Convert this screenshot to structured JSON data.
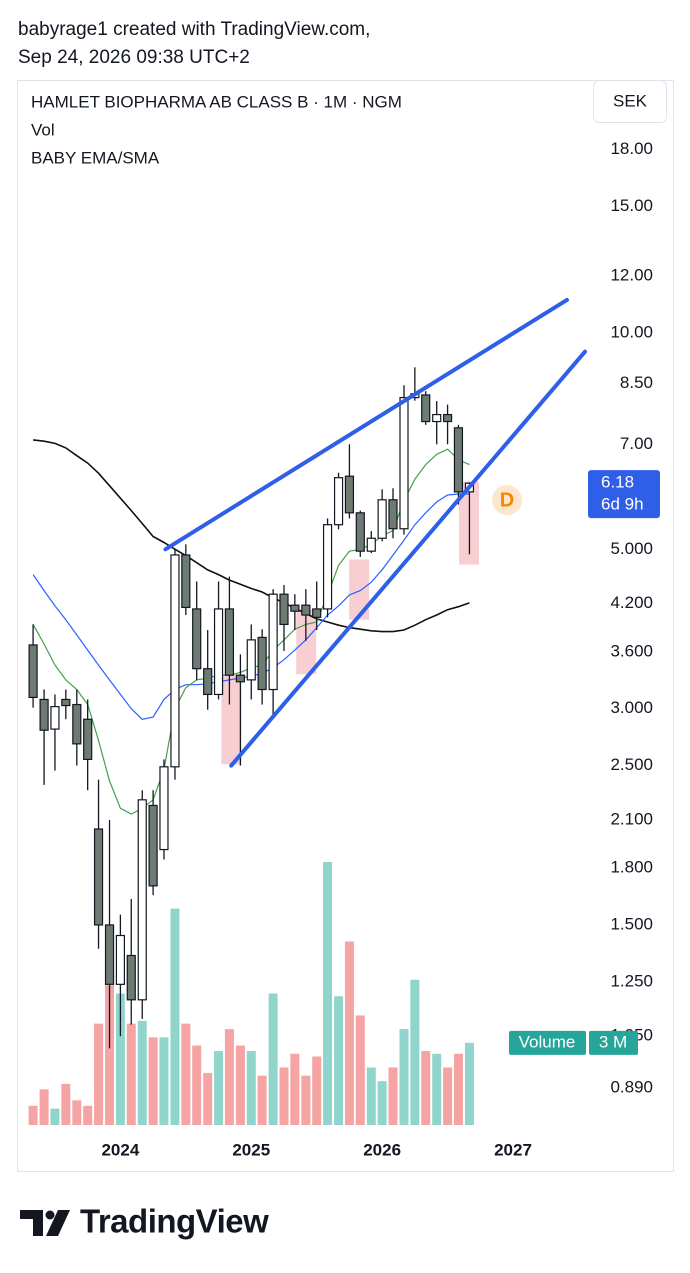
{
  "header": {
    "line1": "babyrage1 created with TradingView.com,",
    "line2": "Sep 24, 2026 09:38 UTC+2"
  },
  "chart_data": {
    "type": "candlestick",
    "title": "HAMLET BIOPHARMA AB CLASS B · 1M · NGM",
    "indicators": [
      "Vol",
      "BABY EMA/SMA"
    ],
    "currency": "SEK",
    "log_scale": true,
    "grid": false,
    "up_color": "#ffffff",
    "down_color": "#6e7b72",
    "x": [
      2023.333,
      2023.417,
      2023.5,
      2023.583,
      2023.667,
      2023.75,
      2023.833,
      2023.917,
      2024,
      2024.083,
      2024.167,
      2024.25,
      2024.333,
      2024.417,
      2024.5,
      2024.583,
      2024.667,
      2024.75,
      2024.833,
      2024.917,
      2025,
      2025.083,
      2025.167,
      2025.25,
      2025.333,
      2025.417,
      2025.5,
      2025.583,
      2025.667,
      2025.75,
      2025.833,
      2025.917,
      2026,
      2026.083,
      2026.167,
      2026.25,
      2026.333,
      2026.417,
      2026.5,
      2026.583,
      2026.667
    ],
    "open": [
      3.68,
      3.09,
      2.81,
      3.09,
      3.04,
      2.9,
      2.04,
      1.5,
      1.24,
      1.36,
      1.18,
      2.2,
      1.91,
      2.49,
      4.91,
      4.13,
      3.41,
      3.14,
      4.13,
      3.34,
      3.29,
      3.77,
      3.19,
      4.33,
      4.18,
      4.18,
      4.13,
      4.13,
      5.41,
      6.32,
      5.62,
      4.97,
      5.18,
      5.86,
      5.34,
      8.13,
      8.2,
      7.53,
      7.7,
      7.38,
      6.01
    ],
    "high": [
      3.93,
      3.19,
      3.14,
      3.19,
      3.19,
      3.09,
      2.39,
      2.1,
      1.55,
      1.63,
      2.31,
      2.31,
      2.55,
      5.0,
      5.08,
      4.51,
      3.86,
      4.51,
      4.58,
      3.57,
      3.93,
      3.87,
      4.4,
      4.46,
      4.33,
      4.4,
      4.51,
      5.52,
      6.39,
      7.0,
      5.66,
      5.3,
      6.06,
      6.08,
      8.46,
      8.96,
      8.3,
      8.04,
      7.95,
      7.45,
      6.2
    ],
    "low": [
      3.01,
      2.35,
      2.46,
      2.9,
      2.5,
      2.31,
      1.39,
      1.01,
      1.05,
      1.09,
      1.11,
      1.65,
      1.85,
      2.39,
      4.05,
      3.29,
      2.99,
      3.09,
      3.04,
      2.5,
      3.09,
      3.04,
      2.94,
      3.61,
      3.86,
      3.73,
      3.86,
      4.02,
      5.33,
      5.52,
      4.88,
      4.94,
      5.13,
      5.18,
      5.24,
      8.05,
      7.45,
      7.0,
      7.0,
      5.77,
      4.92
    ],
    "close": [
      3.11,
      2.8,
      3.02,
      3.03,
      2.68,
      2.55,
      1.5,
      1.24,
      1.45,
      1.18,
      2.24,
      1.7,
      2.49,
      4.91,
      4.15,
      3.41,
      3.14,
      4.13,
      3.34,
      3.27,
      3.74,
      3.19,
      4.33,
      3.93,
      4.1,
      4.05,
      4.02,
      5.41,
      6.29,
      5.62,
      4.97,
      5.18,
      5.86,
      5.34,
      8.13,
      8.23,
      7.53,
      7.7,
      7.53,
      6.01,
      6.18
    ],
    "series": [
      {
        "color": "#111111",
        "values": [
          7.1,
          7.07,
          7.02,
          6.92,
          6.75,
          6.59,
          6.38,
          6.13,
          5.89,
          5.66,
          5.43,
          5.21,
          5.11,
          5.0,
          4.9,
          4.79,
          4.68,
          4.61,
          4.53,
          4.47,
          4.41,
          4.36,
          4.28,
          4.21,
          4.14,
          4.07,
          4.0,
          3.96,
          3.92,
          3.89,
          3.87,
          3.85,
          3.84,
          3.84,
          3.86,
          3.92,
          3.99,
          4.05,
          4.12,
          4.16,
          4.21
        ]
      },
      {
        "color": "#2962ff",
        "values": [
          4.61,
          4.38,
          4.17,
          3.99,
          3.8,
          3.62,
          3.45,
          3.29,
          3.14,
          3.0,
          2.9,
          2.92,
          3.09,
          3.19,
          3.24,
          3.24,
          3.25,
          3.27,
          3.29,
          3.31,
          3.33,
          3.36,
          3.42,
          3.51,
          3.62,
          3.74,
          3.89,
          4.05,
          4.17,
          4.32,
          4.38,
          4.5,
          4.68,
          4.91,
          5.15,
          5.41,
          5.62,
          5.82,
          5.95,
          5.97,
          5.97
        ]
      },
      {
        "color": "#43a047",
        "values": [
          3.93,
          3.69,
          3.45,
          3.29,
          3.19,
          3.04,
          2.71,
          2.38,
          2.18,
          2.14,
          2.18,
          2.24,
          2.47,
          3.0,
          3.21,
          3.29,
          3.31,
          3.34,
          3.34,
          3.37,
          3.42,
          3.45,
          3.62,
          3.74,
          3.87,
          3.93,
          3.96,
          4.32,
          4.75,
          4.97,
          5.0,
          5.08,
          5.22,
          5.31,
          5.85,
          6.26,
          6.56,
          6.78,
          6.89,
          6.66,
          6.56
        ]
      }
    ],
    "volume": {
      "name": "Volume",
      "up_color": "#90d5cc",
      "down_color": "#f5a3a3",
      "values": [
        0.7,
        1.3,
        0.6,
        1.5,
        0.9,
        0.7,
        3.7,
        5.1,
        4.8,
        3.7,
        3.8,
        3.2,
        3.2,
        7.9,
        3.7,
        2.9,
        1.9,
        2.7,
        3.5,
        2.9,
        2.7,
        1.8,
        4.8,
        2.1,
        2.6,
        1.8,
        2.5,
        9.6,
        4.7,
        6.7,
        4.0,
        2.1,
        1.6,
        2.1,
        3.5,
        5.3,
        2.7,
        2.6,
        2.1,
        2.6,
        3.0
      ],
      "current": {
        "value": 3,
        "label": "3 M"
      }
    },
    "last_price": 6.18,
    "countdown": "6d 9h",
    "trendlines": [
      {
        "color": "#2f5fe8",
        "x": [
          2024.344,
          2027.412
        ],
        "y": [
          5.0,
          11.12
        ]
      },
      {
        "color": "#2f5fe8",
        "x": [
          2024.847,
          2027.55
        ],
        "y": [
          2.5,
          9.42
        ]
      }
    ],
    "zones": [
      {
        "color": "#f6c6c9",
        "x": [
          2024.771,
          2024.924
        ],
        "y": [
          2.51,
          3.35
        ]
      },
      {
        "color": "#f6c6c9",
        "x": [
          2025.344,
          2025.496
        ],
        "y": [
          3.35,
          4.12
        ]
      },
      {
        "color": "#f6c6c9",
        "x": [
          2025.748,
          2025.901
        ],
        "y": [
          3.99,
          4.84
        ]
      },
      {
        "color": "#f6c6c9",
        "x": [
          2026.588,
          2026.74
        ],
        "y": [
          4.76,
          6.21
        ]
      }
    ],
    "events": [
      {
        "x": 2026.954,
        "label": "D"
      }
    ],
    "xlim": [
      2023.21,
      2027.55
    ],
    "ylim": [
      0.79,
      22.5
    ],
    "xticks": [
      2024,
      2025,
      2026,
      2027
    ],
    "yticks": [
      {
        "value": 18,
        "label": "18.00"
      },
      {
        "value": 15,
        "label": "15.00"
      },
      {
        "value": 12,
        "label": "12.00"
      },
      {
        "value": 10,
        "label": "10.00"
      },
      {
        "value": 8.5,
        "label": "8.50"
      },
      {
        "value": 7,
        "label": "7.00"
      },
      {
        "value": 5,
        "label": "5.000"
      },
      {
        "value": 4.2,
        "label": "4.200"
      },
      {
        "value": 3.6,
        "label": "3.600"
      },
      {
        "value": 3,
        "label": "3.000"
      },
      {
        "value": 2.5,
        "label": "2.500"
      },
      {
        "value": 2.1,
        "label": "2.100"
      },
      {
        "value": 1.8,
        "label": "1.800"
      },
      {
        "value": 1.5,
        "label": "1.500"
      },
      {
        "value": 1.25,
        "label": "1.250"
      },
      {
        "value": 1.05,
        "label": "1.050"
      },
      {
        "value": 0.89,
        "label": "0.890"
      }
    ]
  },
  "footer": {
    "brand": "TradingView"
  }
}
